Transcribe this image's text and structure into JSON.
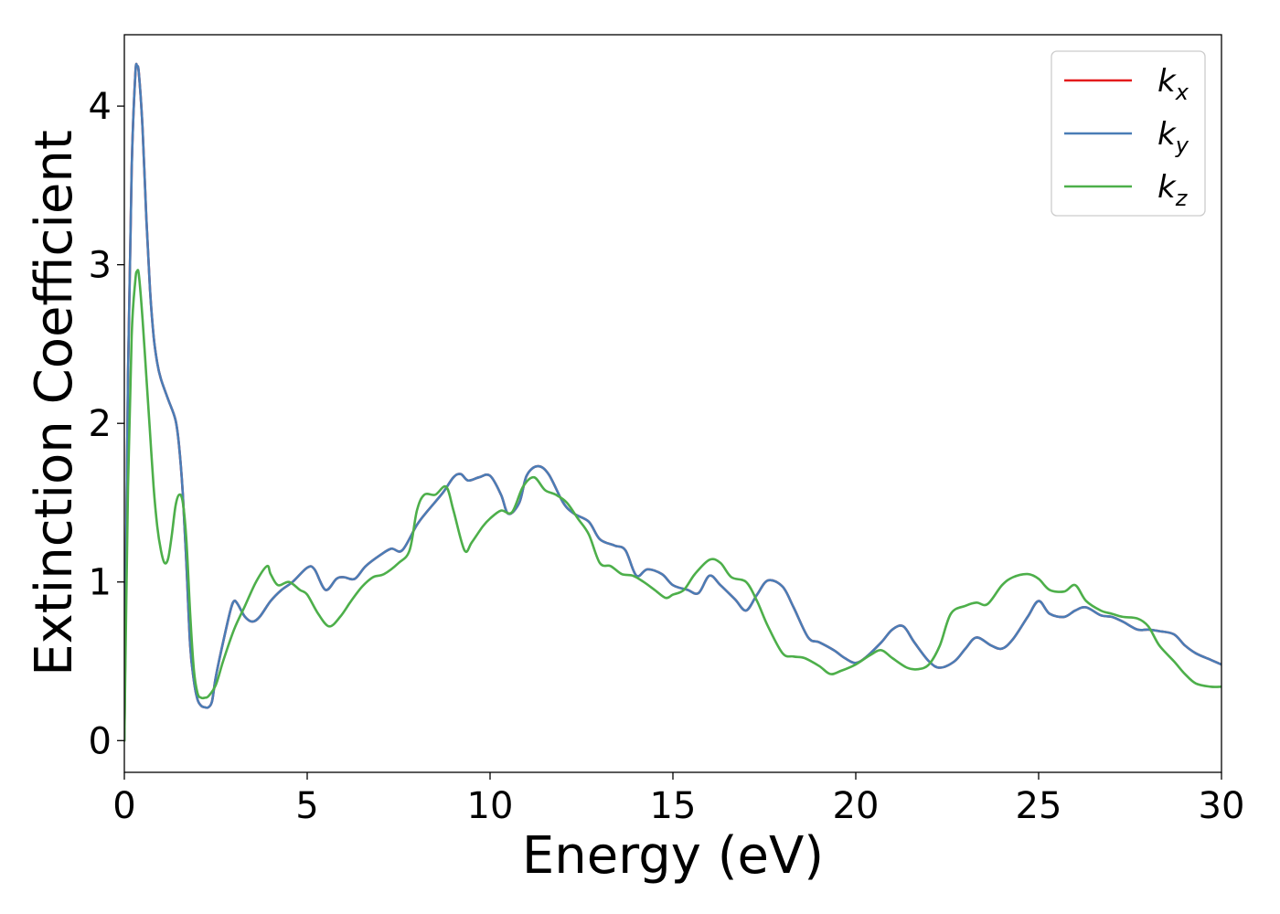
{
  "chart_data": {
    "type": "line",
    "title": "",
    "xlabel": "Energy (eV)",
    "ylabel": "Extinction Coefficient",
    "xlim": [
      0,
      30
    ],
    "ylim": [
      -0.2,
      4.45
    ],
    "xticks": [
      0,
      5,
      10,
      15,
      20,
      25,
      30
    ],
    "yticks": [
      0,
      1,
      2,
      3,
      4
    ],
    "grid": false,
    "legend_position": "top-right",
    "series": [
      {
        "name": "k",
        "subscript": "x",
        "color": "#e41a1c",
        "x": [
          0,
          0.1,
          0.2,
          0.3,
          0.35,
          0.4,
          0.5,
          0.6,
          0.7,
          0.8,
          0.9,
          1.0,
          1.2,
          1.4,
          1.5,
          1.6,
          1.7,
          1.8,
          1.9,
          2.0,
          2.1,
          2.2,
          2.3,
          2.4,
          2.5,
          2.7,
          2.9,
          3.0,
          3.1,
          3.3,
          3.5,
          3.7,
          4.0,
          4.3,
          4.6,
          5.0,
          5.2,
          5.5,
          5.8,
          6.0,
          6.3,
          6.6,
          7.0,
          7.3,
          7.6,
          8.0,
          8.3,
          8.7,
          9.0,
          9.2,
          9.4,
          9.7,
          10.0,
          10.3,
          10.5,
          10.8,
          11.0,
          11.3,
          11.6,
          12.0,
          12.3,
          12.7,
          13.0,
          13.4,
          13.7,
          14.0,
          14.3,
          14.7,
          15.0,
          15.4,
          15.7,
          16.0,
          16.3,
          16.7,
          17.0,
          17.3,
          17.6,
          18.0,
          18.3,
          18.7,
          19.0,
          19.4,
          19.7,
          20.0,
          20.3,
          20.7,
          21.0,
          21.3,
          21.6,
          22.0,
          22.3,
          22.7,
          23.0,
          23.3,
          23.7,
          24.0,
          24.3,
          24.7,
          25.0,
          25.3,
          25.7,
          26.0,
          26.3,
          26.7,
          27.0,
          27.3,
          27.7,
          28.0,
          28.3,
          28.7,
          29.0,
          29.3,
          29.7,
          30.0
        ],
        "y": [
          0,
          2.3,
          3.6,
          4.2,
          4.25,
          4.2,
          3.85,
          3.3,
          2.85,
          2.55,
          2.38,
          2.28,
          2.15,
          2.02,
          1.85,
          1.55,
          1.1,
          0.6,
          0.38,
          0.26,
          0.22,
          0.21,
          0.21,
          0.25,
          0.4,
          0.62,
          0.82,
          0.88,
          0.86,
          0.78,
          0.75,
          0.78,
          0.88,
          0.95,
          1.0,
          1.09,
          1.08,
          0.95,
          1.02,
          1.03,
          1.02,
          1.1,
          1.17,
          1.21,
          1.2,
          1.36,
          1.45,
          1.56,
          1.66,
          1.68,
          1.64,
          1.66,
          1.67,
          1.55,
          1.43,
          1.5,
          1.67,
          1.73,
          1.68,
          1.5,
          1.43,
          1.38,
          1.27,
          1.23,
          1.2,
          1.04,
          1.08,
          1.05,
          0.98,
          0.95,
          0.93,
          1.04,
          0.98,
          0.89,
          0.82,
          0.92,
          1.01,
          0.97,
          0.84,
          0.65,
          0.62,
          0.57,
          0.52,
          0.49,
          0.53,
          0.62,
          0.7,
          0.72,
          0.62,
          0.5,
          0.46,
          0.5,
          0.58,
          0.65,
          0.6,
          0.58,
          0.64,
          0.78,
          0.88,
          0.8,
          0.78,
          0.82,
          0.84,
          0.79,
          0.78,
          0.75,
          0.7,
          0.7,
          0.69,
          0.67,
          0.6,
          0.55,
          0.51,
          0.48
        ]
      },
      {
        "name": "k",
        "subscript": "y",
        "color": "#4a7db6",
        "x": [
          0,
          0.1,
          0.2,
          0.3,
          0.35,
          0.4,
          0.5,
          0.6,
          0.7,
          0.8,
          0.9,
          1.0,
          1.2,
          1.4,
          1.5,
          1.6,
          1.7,
          1.8,
          1.9,
          2.0,
          2.1,
          2.2,
          2.3,
          2.4,
          2.5,
          2.7,
          2.9,
          3.0,
          3.1,
          3.3,
          3.5,
          3.7,
          4.0,
          4.3,
          4.6,
          5.0,
          5.2,
          5.5,
          5.8,
          6.0,
          6.3,
          6.6,
          7.0,
          7.3,
          7.6,
          8.0,
          8.3,
          8.7,
          9.0,
          9.2,
          9.4,
          9.7,
          10.0,
          10.3,
          10.5,
          10.8,
          11.0,
          11.3,
          11.6,
          12.0,
          12.3,
          12.7,
          13.0,
          13.4,
          13.7,
          14.0,
          14.3,
          14.7,
          15.0,
          15.4,
          15.7,
          16.0,
          16.3,
          16.7,
          17.0,
          17.3,
          17.6,
          18.0,
          18.3,
          18.7,
          19.0,
          19.4,
          19.7,
          20.0,
          20.3,
          20.7,
          21.0,
          21.3,
          21.6,
          22.0,
          22.3,
          22.7,
          23.0,
          23.3,
          23.7,
          24.0,
          24.3,
          24.7,
          25.0,
          25.3,
          25.7,
          26.0,
          26.3,
          26.7,
          27.0,
          27.3,
          27.7,
          28.0,
          28.3,
          28.7,
          29.0,
          29.3,
          29.7,
          30.0
        ],
        "y": [
          0,
          2.3,
          3.6,
          4.2,
          4.25,
          4.2,
          3.85,
          3.3,
          2.85,
          2.55,
          2.38,
          2.28,
          2.15,
          2.02,
          1.85,
          1.55,
          1.1,
          0.6,
          0.38,
          0.26,
          0.22,
          0.21,
          0.21,
          0.25,
          0.4,
          0.62,
          0.82,
          0.88,
          0.86,
          0.78,
          0.75,
          0.78,
          0.88,
          0.95,
          1.0,
          1.09,
          1.08,
          0.95,
          1.02,
          1.03,
          1.02,
          1.1,
          1.17,
          1.21,
          1.2,
          1.36,
          1.45,
          1.56,
          1.66,
          1.68,
          1.64,
          1.66,
          1.67,
          1.55,
          1.43,
          1.5,
          1.67,
          1.73,
          1.68,
          1.5,
          1.43,
          1.38,
          1.27,
          1.23,
          1.2,
          1.04,
          1.08,
          1.05,
          0.98,
          0.95,
          0.93,
          1.04,
          0.98,
          0.89,
          0.82,
          0.92,
          1.01,
          0.97,
          0.84,
          0.65,
          0.62,
          0.57,
          0.52,
          0.49,
          0.53,
          0.62,
          0.7,
          0.72,
          0.62,
          0.5,
          0.46,
          0.5,
          0.58,
          0.65,
          0.6,
          0.58,
          0.64,
          0.78,
          0.88,
          0.8,
          0.78,
          0.82,
          0.84,
          0.79,
          0.78,
          0.75,
          0.7,
          0.7,
          0.69,
          0.67,
          0.6,
          0.55,
          0.51,
          0.48
        ]
      },
      {
        "name": "k",
        "subscript": "z",
        "color": "#4daf4a",
        "x": [
          0,
          0.1,
          0.2,
          0.3,
          0.35,
          0.4,
          0.5,
          0.6,
          0.7,
          0.8,
          0.9,
          1.0,
          1.1,
          1.2,
          1.3,
          1.4,
          1.5,
          1.6,
          1.7,
          1.8,
          1.9,
          2.0,
          2.1,
          2.2,
          2.3,
          2.5,
          2.7,
          3.0,
          3.3,
          3.6,
          3.9,
          4.0,
          4.2,
          4.5,
          4.8,
          5.0,
          5.3,
          5.6,
          5.9,
          6.2,
          6.5,
          6.8,
          7.1,
          7.5,
          7.8,
          8.0,
          8.2,
          8.5,
          8.8,
          9.0,
          9.3,
          9.5,
          9.8,
          10.0,
          10.3,
          10.6,
          10.9,
          11.2,
          11.5,
          11.8,
          12.1,
          12.4,
          12.7,
          13.0,
          13.3,
          13.6,
          13.9,
          14.2,
          14.5,
          14.8,
          15.0,
          15.3,
          15.6,
          16.0,
          16.3,
          16.6,
          17.0,
          17.3,
          17.6,
          18.0,
          18.3,
          18.6,
          19.0,
          19.3,
          19.6,
          20.0,
          20.4,
          20.7,
          21.0,
          21.4,
          21.7,
          22.0,
          22.3,
          22.6,
          23.0,
          23.3,
          23.6,
          24.0,
          24.3,
          24.7,
          25.0,
          25.3,
          25.7,
          26.0,
          26.3,
          26.7,
          27.0,
          27.3,
          27.7,
          28.0,
          28.3,
          28.7,
          29.0,
          29.3,
          29.7,
          30.0
        ],
        "y": [
          0,
          1.6,
          2.55,
          2.9,
          2.96,
          2.93,
          2.65,
          2.3,
          1.95,
          1.6,
          1.35,
          1.2,
          1.12,
          1.15,
          1.3,
          1.48,
          1.55,
          1.5,
          1.25,
          0.8,
          0.45,
          0.3,
          0.27,
          0.27,
          0.28,
          0.35,
          0.5,
          0.7,
          0.85,
          1.0,
          1.1,
          1.05,
          0.98,
          1.0,
          0.95,
          0.92,
          0.8,
          0.72,
          0.78,
          0.88,
          0.97,
          1.03,
          1.05,
          1.12,
          1.2,
          1.45,
          1.55,
          1.55,
          1.6,
          1.45,
          1.2,
          1.25,
          1.35,
          1.4,
          1.45,
          1.44,
          1.6,
          1.66,
          1.58,
          1.55,
          1.5,
          1.4,
          1.3,
          1.12,
          1.1,
          1.05,
          1.04,
          1.0,
          0.95,
          0.9,
          0.92,
          0.95,
          1.05,
          1.14,
          1.12,
          1.03,
          1.0,
          0.88,
          0.72,
          0.55,
          0.53,
          0.52,
          0.47,
          0.42,
          0.44,
          0.48,
          0.54,
          0.57,
          0.52,
          0.46,
          0.45,
          0.48,
          0.6,
          0.8,
          0.85,
          0.87,
          0.86,
          0.98,
          1.03,
          1.05,
          1.02,
          0.95,
          0.94,
          0.98,
          0.88,
          0.82,
          0.8,
          0.78,
          0.77,
          0.72,
          0.6,
          0.5,
          0.42,
          0.36,
          0.34,
          0.34
        ]
      }
    ]
  }
}
